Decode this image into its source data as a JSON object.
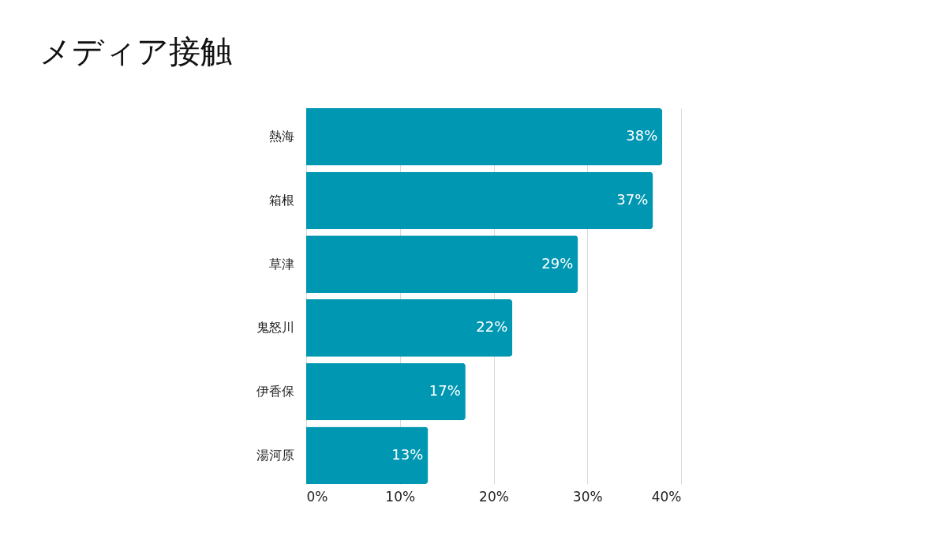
{
  "chart_data": {
    "type": "bar",
    "orientation": "horizontal",
    "title": "メディア接触",
    "categories": [
      "熱海",
      "箱根",
      "草津",
      "鬼怒川",
      "伊香保",
      "湯河原"
    ],
    "values": [
      38,
      37,
      29,
      22,
      17,
      13
    ],
    "value_labels": [
      "38%",
      "37%",
      "29%",
      "22%",
      "17%",
      "13%"
    ],
    "color": "#0097b2",
    "xlim": [
      0,
      40
    ],
    "xticks": [
      {
        "value": 0,
        "label": "0%"
      },
      {
        "value": 10,
        "label": "10%"
      },
      {
        "value": 20,
        "label": "20%"
      },
      {
        "value": 30,
        "label": "30%"
      },
      {
        "value": 40,
        "label": "40%"
      }
    ],
    "grid": "x"
  }
}
